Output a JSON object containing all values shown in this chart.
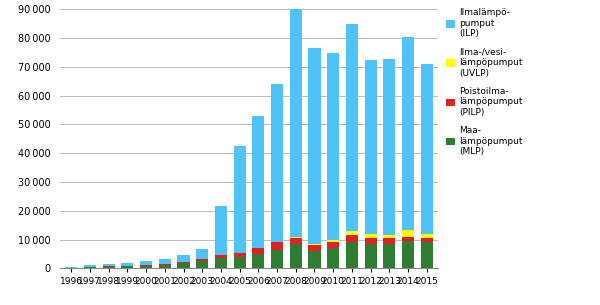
{
  "years": [
    1996,
    1997,
    1998,
    1999,
    2000,
    2001,
    2002,
    2003,
    2004,
    2005,
    2006,
    2007,
    2008,
    2009,
    2010,
    2011,
    2012,
    2013,
    2014,
    2015
  ],
  "ILP": [
    300,
    700,
    900,
    1000,
    1300,
    1700,
    2500,
    3500,
    17000,
    37000,
    46000,
    55000,
    80000,
    68000,
    65000,
    72000,
    60500,
    61000,
    67000,
    59000
  ],
  "UVLP": [
    0,
    0,
    0,
    0,
    0,
    0,
    0,
    0,
    0,
    0,
    0,
    0,
    500,
    500,
    500,
    1500,
    1500,
    1200,
    2500,
    1500
  ],
  "PILP": [
    100,
    200,
    200,
    200,
    300,
    400,
    500,
    700,
    1000,
    1500,
    2000,
    2500,
    2000,
    2000,
    2200,
    2500,
    2000,
    2000,
    1500,
    1500
  ],
  "MLP": [
    200,
    400,
    600,
    700,
    900,
    1200,
    1800,
    2500,
    3500,
    4000,
    5000,
    6500,
    8500,
    6000,
    7000,
    9000,
    8500,
    8500,
    9500,
    9000
  ],
  "colors": {
    "ILP": "#4FC3F7",
    "UVLP": "#FFFF00",
    "PILP": "#DD2222",
    "MLP": "#2E7D32"
  },
  "legend_labels": {
    "ILP": "Ilmalämpö-\npumput\n(ILP)",
    "UVLP": "Ilma-/vesi-\nlämpöpumput\n(UVLP)",
    "PILP": "Poistoilma-\nlämpöpumput\n(PILP)",
    "MLP": "Maa-\nlämpöpumput\n(MLP)"
  },
  "ylim": [
    0,
    90000
  ],
  "yticks": [
    0,
    10000,
    20000,
    30000,
    40000,
    50000,
    60000,
    70000,
    80000,
    90000
  ],
  "background_color": "#FFFFFF",
  "grid_color": "#BBBBBB"
}
